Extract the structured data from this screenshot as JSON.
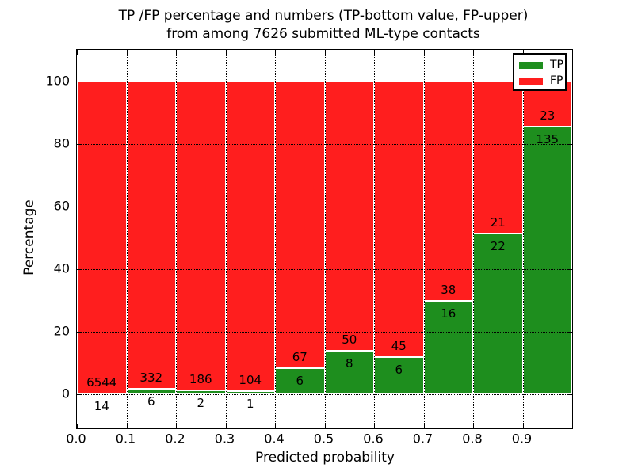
{
  "chart_data": {
    "type": "bar",
    "stacked": true,
    "percent_normalized": true,
    "title": "TP /FP percentage and numbers (TP-bottom value, FP-upper)\nfrom among 7626 submitted ML-type contacts",
    "title_lines": [
      "TP /FP percentage and numbers (TP-bottom value, FP-upper)",
      "from among 7626 submitted ML-type contacts"
    ],
    "xlabel": "Predicted probability",
    "ylabel": "Percentage",
    "total_contacts": 7626,
    "xlim": [
      0.0,
      1.0
    ],
    "ylim": [
      -11,
      110
    ],
    "x_ticks": [
      0.0,
      0.1,
      0.2,
      0.3,
      0.4,
      0.5,
      0.6,
      0.7,
      0.8,
      0.9
    ],
    "x_tick_labels": [
      "0.0",
      "0.1",
      "0.2",
      "0.3",
      "0.4",
      "0.5",
      "0.6",
      "0.7",
      "0.8",
      "0.9"
    ],
    "y_ticks": [
      0,
      20,
      40,
      60,
      80,
      100
    ],
    "bin_width": 0.1,
    "bin_starts": [
      0.0,
      0.1,
      0.2,
      0.3,
      0.4,
      0.5,
      0.6,
      0.7,
      0.8,
      0.9
    ],
    "series": [
      {
        "name": "TP",
        "stack_position": "bottom",
        "color": "#1E8E1E",
        "values": [
          14,
          6,
          2,
          1,
          6,
          8,
          6,
          16,
          22,
          135
        ]
      },
      {
        "name": "FP",
        "stack_position": "top",
        "color": "#FF1E1E",
        "values": [
          6544,
          332,
          186,
          104,
          67,
          50,
          45,
          38,
          21,
          23
        ]
      }
    ],
    "tp_percent_by_bin": [
      0.2,
      1.8,
      1.1,
      1.0,
      8.2,
      13.8,
      11.8,
      29.6,
      51.2,
      85.4
    ],
    "legend": {
      "position": "upper right",
      "entries": [
        {
          "label": "TP",
          "color": "#1E8E1E"
        },
        {
          "label": "FP",
          "color": "#FF1E1E"
        }
      ]
    },
    "grid": {
      "visible": true,
      "linestyle": "dotted",
      "color": "#000000"
    },
    "colors": {
      "background": "#FFFFFF",
      "frame": "#000000",
      "bar_edge": "#FFFFFF",
      "text": "#000000"
    }
  }
}
